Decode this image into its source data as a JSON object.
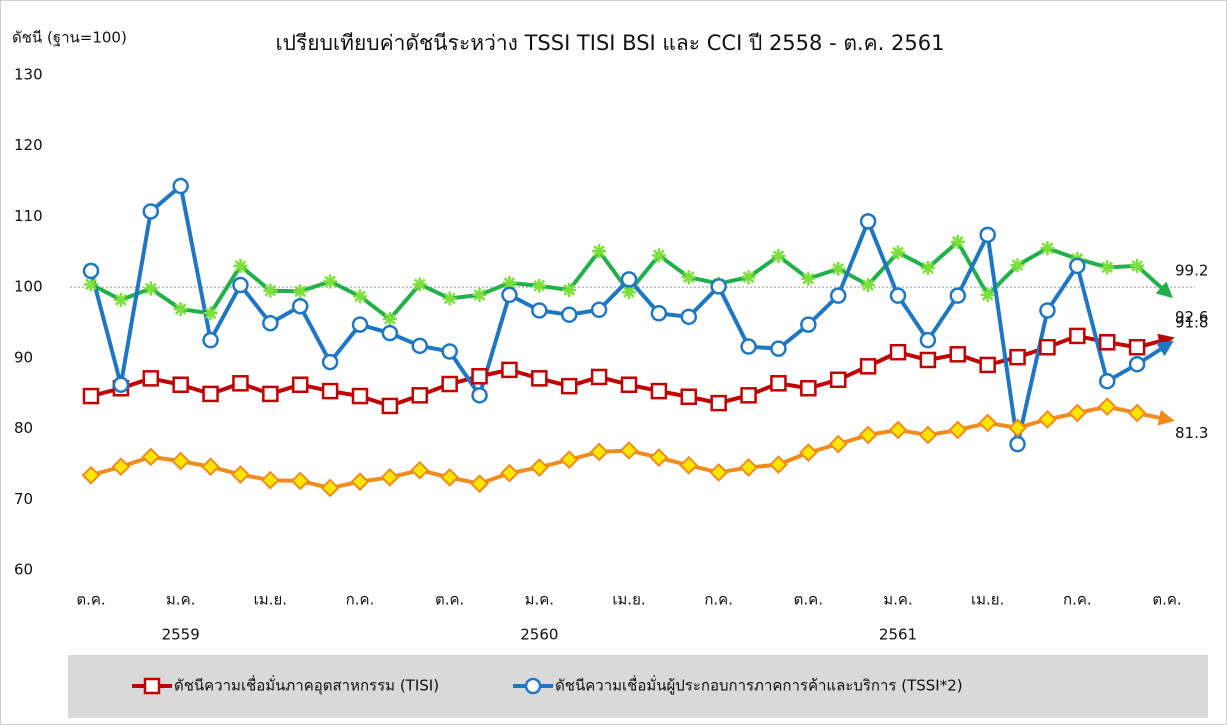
{
  "chart_data": {
    "type": "line",
    "title": "เปรียบเทียบค่าดัชนีระหว่าง TSSI TISI BSI และ CCI ปี 2558 - ต.ค. 2561",
    "y_axis_label": "ดัชนี (ฐาน=100)",
    "categories": [
      "ต.ค.",
      null,
      null,
      "ม.ค.",
      null,
      null,
      "เม.ย.",
      null,
      null,
      "ก.ค.",
      null,
      null,
      "ต.ค.",
      null,
      null,
      "ม.ค.",
      null,
      null,
      "เม.ย.",
      null,
      null,
      "ก.ค.",
      null,
      null,
      "ต.ค.",
      null,
      null,
      "ม.ค.",
      null,
      null,
      "เม.ย.",
      null,
      null,
      "ก.ค.",
      null,
      null,
      "ต.ค."
    ],
    "year_labels": [
      "2559",
      "2560",
      "2561"
    ],
    "ylim": [
      60,
      130
    ],
    "yticks": [
      60,
      70,
      80,
      90,
      100,
      110,
      120,
      130
    ],
    "reference_line": 100,
    "series": [
      {
        "color": "#22b04b",
        "marker": "asterisk",
        "values": [
          100.4,
          98.2,
          99.8,
          96.9,
          96.3,
          103.0,
          99.5,
          99.4,
          100.8,
          98.7,
          95.5,
          100.4,
          98.4,
          98.9,
          100.6,
          100.2,
          99.6,
          105.1,
          99.3,
          104.5,
          101.4,
          100.5,
          101.4,
          104.4,
          101.2,
          102.6,
          100.3,
          104.9,
          102.7,
          106.4,
          98.9,
          103.1,
          105.5,
          104.0,
          102.8,
          103.0,
          99.2
        ]
      },
      {
        "name": "ดัชนีความเชื่อมั่นภาคอุตสาหกรรม (TISI)",
        "color": "#c00000",
        "marker": "square",
        "values": [
          84.6,
          85.7,
          87.1,
          86.2,
          84.9,
          86.4,
          84.9,
          86.2,
          85.3,
          84.6,
          83.2,
          84.7,
          86.3,
          87.4,
          88.3,
          87.1,
          86.0,
          87.3,
          86.2,
          85.3,
          84.5,
          83.6,
          84.7,
          86.4,
          85.7,
          86.9,
          88.8,
          90.8,
          89.7,
          90.5,
          89.0,
          90.1,
          91.5,
          93.1,
          92.2,
          91.5,
          92.6
        ]
      },
      {
        "name": "ดัชนีความเชื่อมั่นผู้ประกอบการภาคการค้าและบริการ (TSSI*2)",
        "color": "#1f77c4",
        "marker": "circle",
        "values": [
          102.3,
          86.2,
          110.7,
          114.3,
          92.5,
          100.3,
          94.9,
          97.3,
          89.4,
          94.7,
          93.5,
          91.7,
          90.9,
          84.7,
          98.9,
          96.7,
          96.1,
          96.8,
          101.1,
          96.3,
          95.8,
          100.1,
          91.6,
          91.3,
          94.7,
          98.8,
          109.3,
          98.8,
          92.5,
          98.8,
          107.4,
          77.8,
          96.7,
          103.0,
          86.7,
          89.1,
          91.8
        ]
      },
      {
        "color": "#f08c1e",
        "marker": "diamond",
        "values": [
          73.4,
          74.6,
          76.0,
          75.4,
          74.6,
          73.5,
          72.7,
          72.6,
          71.6,
          72.5,
          73.1,
          74.1,
          73.1,
          72.2,
          73.7,
          74.5,
          75.6,
          76.7,
          76.9,
          75.9,
          74.8,
          73.8,
          74.5,
          74.9,
          76.6,
          77.8,
          79.1,
          79.8,
          79.1,
          79.8,
          80.8,
          80.1,
          81.3,
          82.2,
          83.1,
          82.2,
          81.3
        ]
      }
    ]
  }
}
